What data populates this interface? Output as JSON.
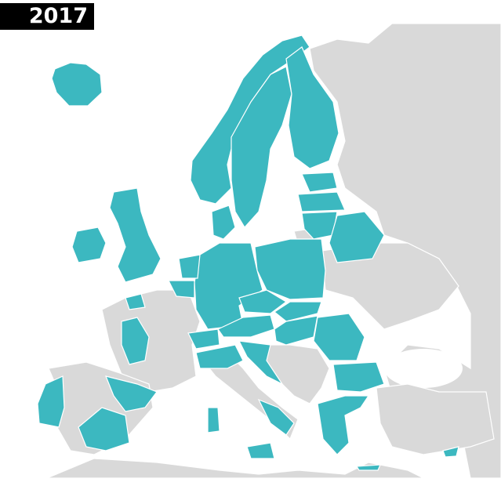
{
  "title": "2017",
  "colors": {
    "highlighted": "#3cb8c0",
    "other": "#d9d9d9",
    "sea": "#ffffff"
  }
}
